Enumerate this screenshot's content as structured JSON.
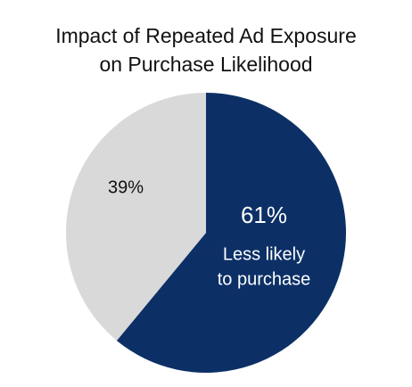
{
  "chart_data": {
    "type": "pie",
    "title_lines": [
      "Impact of Repeated Ad Exposure",
      "on Purchase Likelihood"
    ],
    "slices": [
      {
        "value": 61,
        "label": "61%",
        "sublabel_lines": [
          "Less likely",
          "to purchase"
        ],
        "color": "#0c3066",
        "label_color": "#ffffff"
      },
      {
        "value": 39,
        "label": "39%",
        "sublabel_lines": [],
        "color": "#d9d9d9",
        "label_color": "#111111"
      }
    ],
    "start_angle_deg": 0,
    "direction": "clockwise",
    "legend": "none"
  }
}
